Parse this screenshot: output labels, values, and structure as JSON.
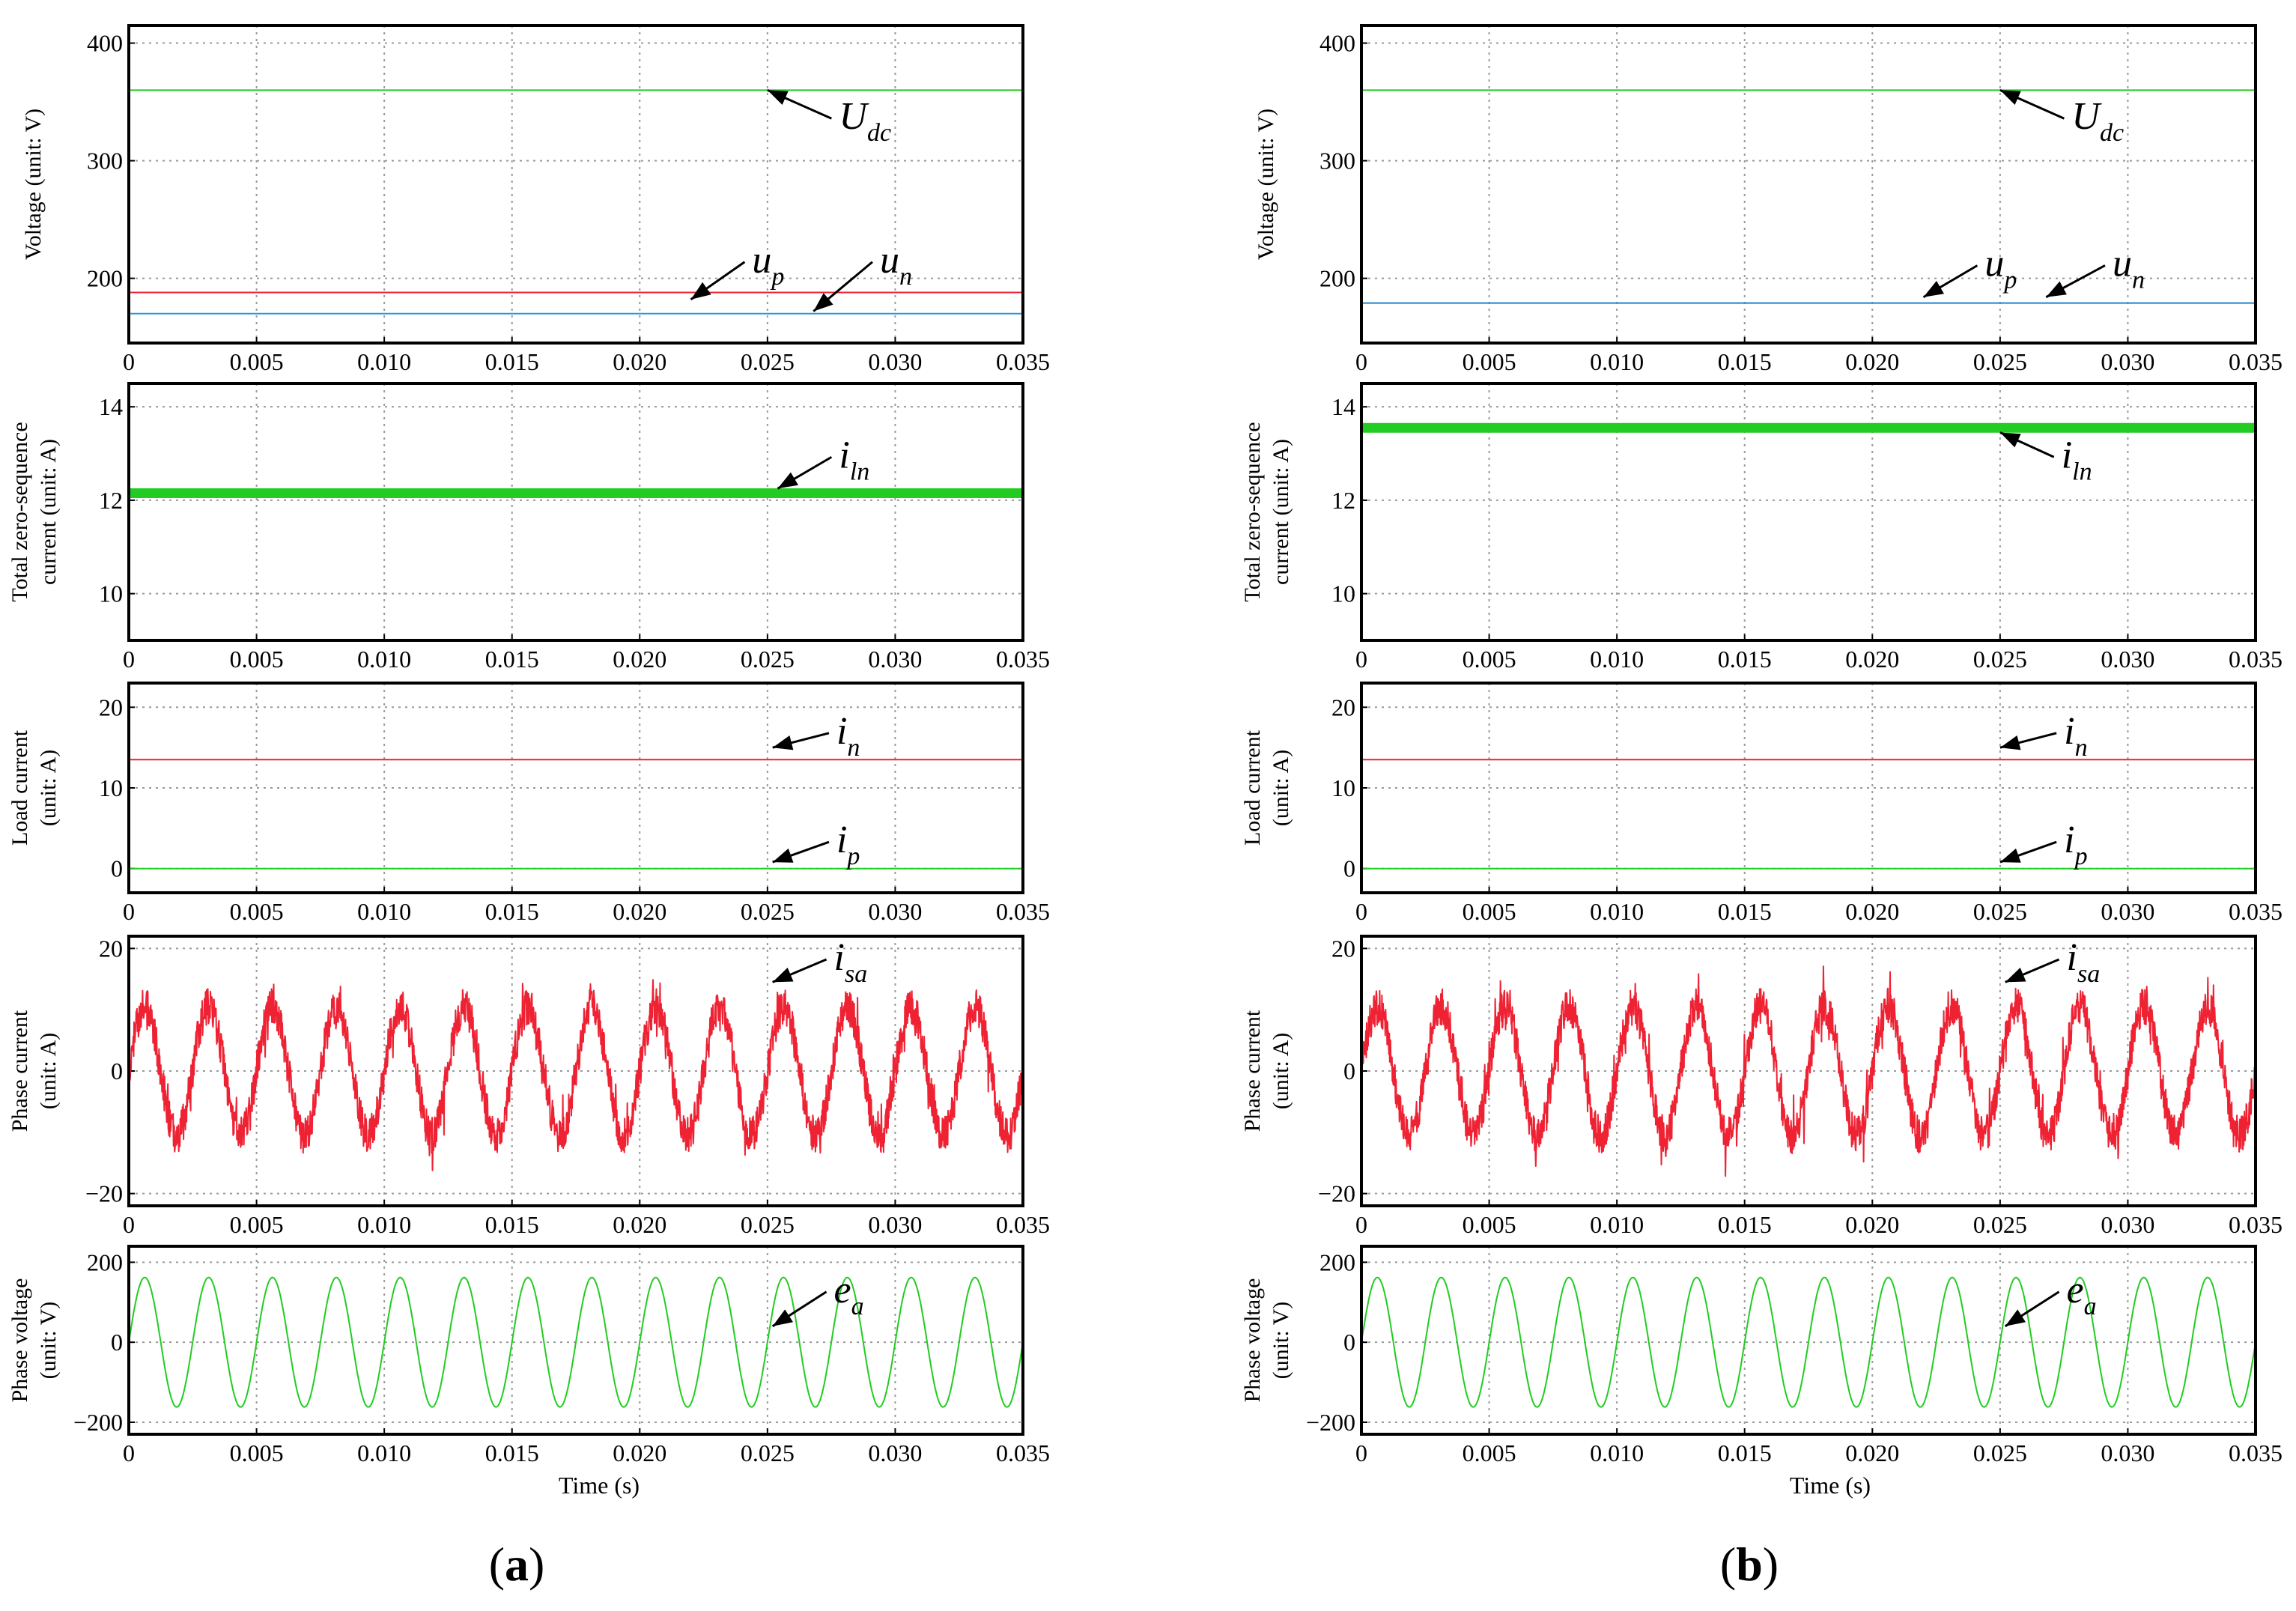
{
  "figure": {
    "xlabel": "Time (s)",
    "x_ticks": [
      "0",
      "0.005",
      "0.010",
      "0.015",
      "0.020",
      "0.025",
      "0.030",
      "0.035"
    ],
    "panel_labels": [
      {
        "open": "(",
        "letter": "a",
        "close": ")"
      },
      {
        "open": "(",
        "letter": "b",
        "close": ")"
      }
    ],
    "colors": {
      "green": "#22cc22",
      "red": "#ee2233",
      "blue": "#2299dd",
      "frame": "#000000",
      "grid": "#9a9a9a"
    }
  },
  "chart_data": [
    {
      "id": "a",
      "rows": [
        {
          "type": "line",
          "ylabel": [
            "Voltage (unit: V)"
          ],
          "ylim": [
            145,
            415
          ],
          "yticks": [
            200,
            300,
            400
          ],
          "ytick_labels": [
            "200",
            "300",
            "400"
          ],
          "xlim": [
            0,
            0.035
          ],
          "series": [
            {
              "name": "U_dc",
              "color": "#22cc22",
              "kind": "const",
              "value": 360,
              "width": 2
            },
            {
              "name": "u_p",
              "color": "#ee2233",
              "kind": "const",
              "value": 188,
              "width": 2
            },
            {
              "name": "u_n",
              "color": "#2299dd",
              "kind": "const",
              "value": 170,
              "width": 2
            }
          ],
          "annotations": [
            {
              "main": "U",
              "sub": "dc",
              "tip": [
                0.025,
                360
              ],
              "label_at": [
                0.0278,
                327
              ]
            },
            {
              "main": "u",
              "sub": "p",
              "tip": [
                0.022,
                182
              ],
              "label_at": [
                0.0244,
                205
              ]
            },
            {
              "main": "u",
              "sub": "n",
              "tip": [
                0.0268,
                172
              ],
              "label_at": [
                0.0294,
                205
              ]
            }
          ]
        },
        {
          "type": "line",
          "ylabel": [
            "Total zero-sequence",
            "current (unit: A)"
          ],
          "ylim": [
            9.0,
            14.5
          ],
          "yticks": [
            10,
            12,
            14
          ],
          "ytick_labels": [
            "10",
            "12",
            "14"
          ],
          "xlim": [
            0,
            0.035
          ],
          "series": [
            {
              "name": "i_ln",
              "color": "#22cc22",
              "kind": "const",
              "value": 12.15,
              "width": 13
            }
          ],
          "annotations": [
            {
              "main": "i",
              "sub": "ln",
              "tip": [
                0.0254,
                12.25
              ],
              "label_at": [
                0.0278,
                12.7
              ]
            }
          ]
        },
        {
          "type": "line",
          "ylabel": [
            "Load current",
            "(unit: A)"
          ],
          "ylim": [
            -3,
            23
          ],
          "yticks": [
            0,
            10,
            20
          ],
          "ytick_labels": [
            "0",
            "10",
            "20"
          ],
          "xlim": [
            0,
            0.035
          ],
          "series": [
            {
              "name": "i_n",
              "color": "#ee2233",
              "kind": "const",
              "value": 13.5,
              "width": 2
            },
            {
              "name": "i_p",
              "color": "#22cc22",
              "kind": "const",
              "value": 0,
              "width": 2
            }
          ],
          "annotations": [
            {
              "main": "i",
              "sub": "n",
              "tip": [
                0.0252,
                15.0
              ],
              "label_at": [
                0.0277,
                15.5
              ]
            },
            {
              "main": "i",
              "sub": "p",
              "tip": [
                0.0252,
                0.8
              ],
              "label_at": [
                0.0277,
                2.0
              ]
            }
          ]
        },
        {
          "type": "line",
          "ylabel": [
            "Phase current",
            "(unit: A)"
          ],
          "ylim": [
            -22,
            22
          ],
          "yticks": [
            -20,
            0,
            20
          ],
          "ytick_labels": [
            "−20",
            "0",
            "20"
          ],
          "xlim": [
            0,
            0.035
          ],
          "series": [
            {
              "name": "i_sa",
              "color": "#ee2233",
              "kind": "sine",
              "amplitude": 10.5,
              "frequency_hz": 400,
              "phase_deg": 0,
              "noise": 3.0,
              "width": 2
            }
          ],
          "annotations": [
            {
              "main": "i",
              "sub": "sa",
              "tip": [
                0.0252,
                14.5
              ],
              "label_at": [
                0.0276,
                16.5
              ]
            }
          ]
        },
        {
          "type": "line",
          "ylabel": [
            "Phase voltage",
            "(unit: V)"
          ],
          "ylim": [
            -230,
            240
          ],
          "yticks": [
            -200,
            0,
            200
          ],
          "ytick_labels": [
            "−200",
            "0",
            "200"
          ],
          "xlim": [
            0,
            0.035
          ],
          "series": [
            {
              "name": "e_a",
              "color": "#22cc22",
              "kind": "sine",
              "amplitude": 162,
              "frequency_hz": 400,
              "phase_deg": 0,
              "noise": 0,
              "width": 2
            }
          ],
          "annotations": [
            {
              "main": "e",
              "sub": "a",
              "tip": [
                0.0252,
                40
              ],
              "label_at": [
                0.0276,
                100
              ]
            }
          ]
        }
      ]
    },
    {
      "id": "b",
      "rows": [
        {
          "type": "line",
          "ylabel": [
            "Voltage (unit: V)"
          ],
          "ylim": [
            145,
            415
          ],
          "yticks": [
            200,
            300,
            400
          ],
          "ytick_labels": [
            "200",
            "300",
            "400"
          ],
          "xlim": [
            0,
            0.035
          ],
          "series": [
            {
              "name": "U_dc",
              "color": "#22cc22",
              "kind": "const",
              "value": 360,
              "width": 2
            },
            {
              "name": "u_p",
              "color": "#ee2233",
              "kind": "const",
              "value": 179,
              "width": 2
            },
            {
              "name": "u_n",
              "color": "#2299dd",
              "kind": "const",
              "value": 179,
              "width": 2
            }
          ],
          "annotations": [
            {
              "main": "U",
              "sub": "dc",
              "tip": [
                0.025,
                360
              ],
              "label_at": [
                0.0278,
                327
              ]
            },
            {
              "main": "u",
              "sub": "p",
              "tip": [
                0.022,
                184
              ],
              "label_at": [
                0.0244,
                202
              ]
            },
            {
              "main": "u",
              "sub": "n",
              "tip": [
                0.0268,
                184
              ],
              "label_at": [
                0.0294,
                202
              ]
            }
          ]
        },
        {
          "type": "line",
          "ylabel": [
            "Total zero-sequence",
            "current (unit: A)"
          ],
          "ylim": [
            9.0,
            14.5
          ],
          "yticks": [
            10,
            12,
            14
          ],
          "ytick_labels": [
            "10",
            "12",
            "14"
          ],
          "xlim": [
            0,
            0.035
          ],
          "series": [
            {
              "name": "i_ln",
              "color": "#22cc22",
              "kind": "const",
              "value": 13.55,
              "width": 13
            }
          ],
          "annotations": [
            {
              "main": "i",
              "sub": "ln",
              "tip": [
                0.025,
                13.45
              ],
              "label_at": [
                0.0274,
                12.7
              ]
            }
          ]
        },
        {
          "type": "line",
          "ylabel": [
            "Load current",
            "(unit: A)"
          ],
          "ylim": [
            -3,
            23
          ],
          "yticks": [
            0,
            10,
            20
          ],
          "ytick_labels": [
            "0",
            "10",
            "20"
          ],
          "xlim": [
            0,
            0.035
          ],
          "series": [
            {
              "name": "i_n",
              "color": "#ee2233",
              "kind": "const",
              "value": 13.5,
              "width": 2
            },
            {
              "name": "i_p",
              "color": "#22cc22",
              "kind": "const",
              "value": 0,
              "width": 2
            }
          ],
          "annotations": [
            {
              "main": "i",
              "sub": "n",
              "tip": [
                0.025,
                15.0
              ],
              "label_at": [
                0.0275,
                15.5
              ]
            },
            {
              "main": "i",
              "sub": "p",
              "tip": [
                0.025,
                0.8
              ],
              "label_at": [
                0.0275,
                2.0
              ]
            }
          ]
        },
        {
          "type": "line",
          "ylabel": [
            "Phase current",
            "(unit: A)"
          ],
          "ylim": [
            -22,
            22
          ],
          "yticks": [
            -20,
            0,
            20
          ],
          "ytick_labels": [
            "−20",
            "0",
            "20"
          ],
          "xlim": [
            0,
            0.035
          ],
          "series": [
            {
              "name": "i_sa",
              "color": "#ee2233",
              "kind": "sine",
              "amplitude": 10.5,
              "frequency_hz": 400,
              "phase_deg": 0,
              "noise": 3.0,
              "width": 2
            }
          ],
          "annotations": [
            {
              "main": "i",
              "sub": "sa",
              "tip": [
                0.0252,
                14.5
              ],
              "label_at": [
                0.0276,
                16.5
              ]
            }
          ]
        },
        {
          "type": "line",
          "ylabel": [
            "Phase voltage",
            "(unit: V)"
          ],
          "ylim": [
            -230,
            240
          ],
          "yticks": [
            -200,
            0,
            200
          ],
          "ytick_labels": [
            "−200",
            "0",
            "200"
          ],
          "xlim": [
            0,
            0.035
          ],
          "series": [
            {
              "name": "e_a",
              "color": "#22cc22",
              "kind": "sine",
              "amplitude": 162,
              "frequency_hz": 400,
              "phase_deg": 0,
              "noise": 0,
              "width": 2
            }
          ],
          "annotations": [
            {
              "main": "e",
              "sub": "a",
              "tip": [
                0.0252,
                40
              ],
              "label_at": [
                0.0276,
                100
              ]
            }
          ]
        }
      ]
    }
  ]
}
